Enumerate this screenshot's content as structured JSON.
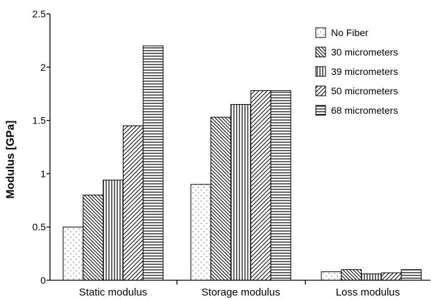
{
  "chart_data": {
    "type": "bar",
    "title": "",
    "xlabel": "",
    "ylabel": "Modulus  [GPa]",
    "ylim": [
      0,
      2.5
    ],
    "yticks": [
      "0",
      "0.5",
      "1",
      "1.5",
      "2",
      "2.5"
    ],
    "categories": [
      "Static modulus",
      "Storage modulus",
      "Loss modulus"
    ],
    "series": [
      {
        "name": "No Fiber",
        "values": [
          0.5,
          0.9,
          0.08
        ],
        "pattern": "dots"
      },
      {
        "name": "30 micrometers",
        "values": [
          0.8,
          1.53,
          0.1
        ],
        "pattern": "diag-back"
      },
      {
        "name": "39 micrometers",
        "values": [
          0.94,
          1.65,
          0.06
        ],
        "pattern": "vertical"
      },
      {
        "name": "50 micrometers",
        "values": [
          1.45,
          1.78,
          0.07
        ],
        "pattern": "diag-fwd"
      },
      {
        "name": "68 micrometers",
        "values": [
          2.2,
          1.78,
          0.1
        ],
        "pattern": "horizontal"
      }
    ],
    "legend_position": "top-right",
    "grid": false,
    "colors": {
      "bar_fill": "#ffffff",
      "bar_stroke": "#000000",
      "axis": "#000000"
    }
  }
}
